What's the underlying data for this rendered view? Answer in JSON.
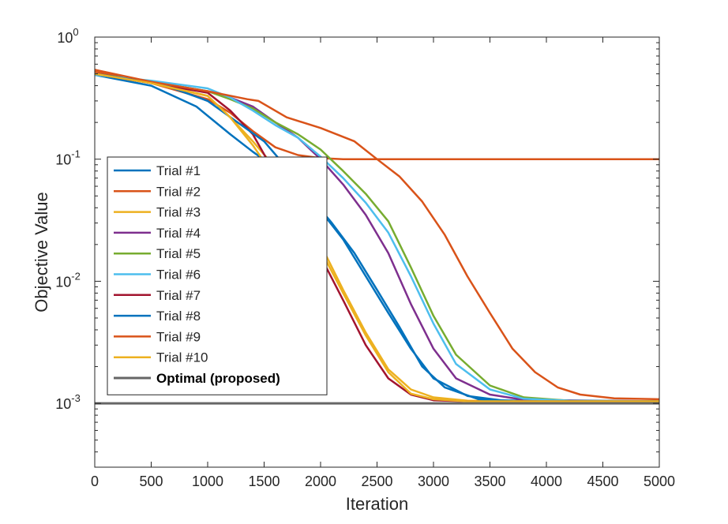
{
  "chart_data": {
    "type": "line",
    "title": "",
    "xlabel": "Iteration",
    "ylabel": "Objective Value",
    "y_scale": "log",
    "xlim": [
      0,
      5000
    ],
    "ylim": [
      0.0003,
      1
    ],
    "x_ticks": [
      "0",
      "500",
      "1000",
      "1500",
      "2000",
      "2500",
      "3000",
      "3500",
      "4000",
      "4500",
      "5000"
    ],
    "y_ticks": [
      {
        "base": "10",
        "exp": "0",
        "value": 1
      },
      {
        "base": "10",
        "exp": "-1",
        "value": 0.1
      },
      {
        "base": "10",
        "exp": "-2",
        "value": 0.01
      },
      {
        "base": "10",
        "exp": "-3",
        "value": 0.001
      }
    ],
    "grid": false,
    "legend_position": "center-left",
    "series": [
      {
        "name": "Trial #1",
        "color": "#0072BD",
        "x": [
          0,
          500,
          900,
          1200,
          1400,
          1600,
          1800,
          2000,
          2200,
          2400,
          2600,
          2800,
          3000,
          3300,
          3600,
          4000,
          5000
        ],
        "y": [
          0.49,
          0.4,
          0.27,
          0.16,
          0.115,
          0.085,
          0.058,
          0.038,
          0.022,
          0.011,
          0.0055,
          0.0028,
          0.0016,
          0.00115,
          0.00106,
          0.00104,
          0.00104
        ]
      },
      {
        "name": "Trial #2",
        "color": "#D95319",
        "x": [
          0,
          500,
          1000,
          1200,
          1400,
          1600,
          1800,
          2000,
          2200,
          2600,
          3000,
          5000
        ],
        "y": [
          0.52,
          0.42,
          0.31,
          0.24,
          0.17,
          0.125,
          0.108,
          0.102,
          0.1,
          0.1,
          0.1,
          0.1
        ]
      },
      {
        "name": "Trial #3",
        "color": "#EDB120",
        "x": [
          0,
          500,
          1000,
          1200,
          1400,
          1600,
          1800,
          2000,
          2200,
          2400,
          2600,
          2800,
          3000,
          3300,
          3600,
          5000
        ],
        "y": [
          0.5,
          0.42,
          0.33,
          0.22,
          0.14,
          0.085,
          0.044,
          0.02,
          0.0085,
          0.0038,
          0.0019,
          0.0013,
          0.00112,
          0.00105,
          0.00104,
          0.00104
        ]
      },
      {
        "name": "Trial #4",
        "color": "#7E2F8E",
        "x": [
          0,
          500,
          1000,
          1200,
          1400,
          1600,
          1800,
          2000,
          2200,
          2400,
          2600,
          2800,
          3000,
          3200,
          3500,
          3800,
          5000
        ],
        "y": [
          0.5,
          0.43,
          0.36,
          0.32,
          0.27,
          0.2,
          0.15,
          0.1,
          0.062,
          0.035,
          0.017,
          0.0065,
          0.0028,
          0.0016,
          0.00118,
          0.00107,
          0.00104
        ]
      },
      {
        "name": "Trial #5",
        "color": "#77AC30",
        "x": [
          0,
          500,
          1000,
          1200,
          1400,
          1600,
          1800,
          2000,
          2200,
          2400,
          2600,
          2800,
          3000,
          3200,
          3500,
          3800,
          4200,
          5000
        ],
        "y": [
          0.5,
          0.43,
          0.36,
          0.31,
          0.26,
          0.2,
          0.16,
          0.12,
          0.08,
          0.052,
          0.031,
          0.013,
          0.0052,
          0.0025,
          0.0014,
          0.00112,
          0.00105,
          0.00104
        ]
      },
      {
        "name": "Trial #6",
        "color": "#4DBEEE",
        "x": [
          0,
          500,
          1000,
          1200,
          1400,
          1600,
          1800,
          2000,
          2200,
          2400,
          2600,
          2800,
          3000,
          3200,
          3500,
          3800,
          4200,
          5000
        ],
        "y": [
          0.49,
          0.44,
          0.38,
          0.32,
          0.25,
          0.19,
          0.15,
          0.105,
          0.07,
          0.044,
          0.025,
          0.011,
          0.0045,
          0.0021,
          0.0013,
          0.00109,
          0.00105,
          0.00104
        ]
      },
      {
        "name": "Trial #7",
        "color": "#A2142F",
        "x": [
          0,
          500,
          1000,
          1200,
          1400,
          1600,
          1800,
          2000,
          2200,
          2400,
          2600,
          2800,
          3000,
          3300,
          5000
        ],
        "y": [
          0.5,
          0.42,
          0.35,
          0.25,
          0.16,
          0.075,
          0.035,
          0.016,
          0.007,
          0.003,
          0.0016,
          0.00118,
          0.00106,
          0.00104,
          0.00104
        ]
      },
      {
        "name": "Trial #8",
        "color": "#0072BD",
        "x": [
          0,
          600,
          1000,
          1300,
          1500,
          1700,
          1900,
          2100,
          2300,
          2500,
          2700,
          2900,
          3100,
          3400,
          3700,
          5000
        ],
        "y": [
          0.5,
          0.41,
          0.3,
          0.19,
          0.14,
          0.085,
          0.05,
          0.03,
          0.017,
          0.0085,
          0.0042,
          0.002,
          0.00135,
          0.00108,
          0.00104,
          0.00104
        ]
      },
      {
        "name": "Trial #9",
        "color": "#D95319",
        "x": [
          0,
          500,
          1000,
          1350,
          1450,
          1700,
          2000,
          2300,
          2500,
          2700,
          2900,
          3100,
          3300,
          3500,
          3700,
          3900,
          4100,
          4300,
          4600,
          5000
        ],
        "y": [
          0.54,
          0.43,
          0.36,
          0.31,
          0.3,
          0.22,
          0.18,
          0.14,
          0.1,
          0.072,
          0.045,
          0.024,
          0.011,
          0.0055,
          0.0028,
          0.0018,
          0.00135,
          0.00118,
          0.0011,
          0.00108
        ]
      },
      {
        "name": "Trial #10",
        "color": "#EDB120",
        "x": [
          0,
          500,
          1000,
          1200,
          1400,
          1600,
          1800,
          2000,
          2200,
          2400,
          2600,
          2800,
          3000,
          3300,
          5000
        ],
        "y": [
          0.5,
          0.42,
          0.33,
          0.22,
          0.13,
          0.07,
          0.038,
          0.018,
          0.008,
          0.0036,
          0.0018,
          0.0012,
          0.00108,
          0.00104,
          0.00104
        ]
      },
      {
        "name": "Optimal (proposed)",
        "color": "#666666",
        "bold": true,
        "x": [
          0,
          5000
        ],
        "y": [
          0.001,
          0.001
        ]
      }
    ]
  }
}
